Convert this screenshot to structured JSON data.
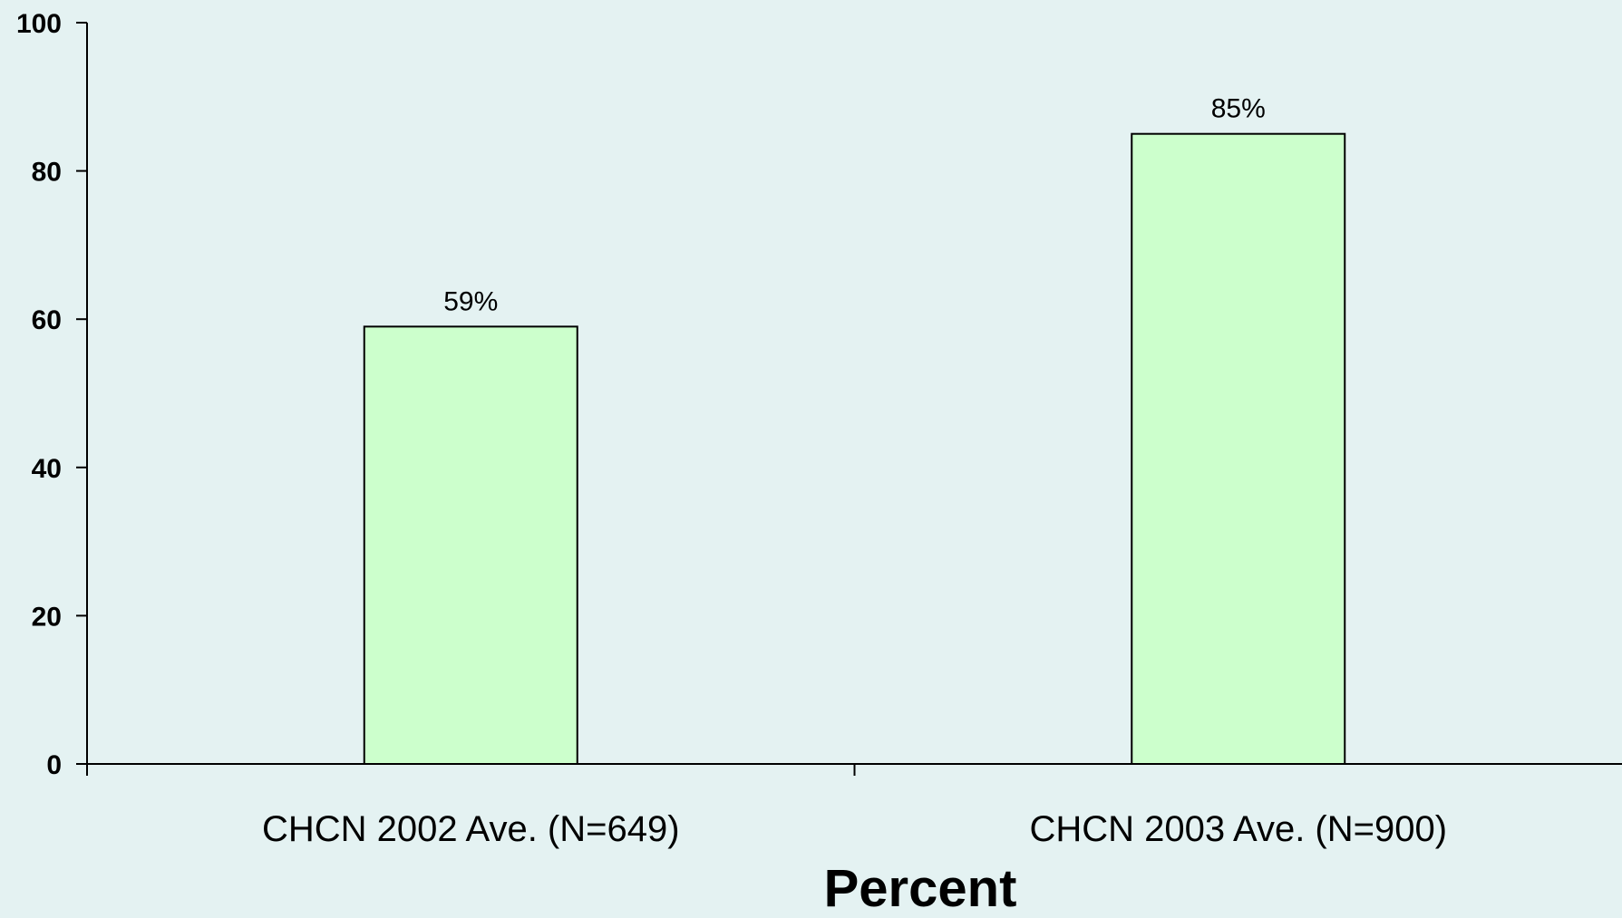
{
  "colors": {
    "background": "#e4f2f2",
    "bar_fill": "#ccffcc",
    "bar_stroke": "#000000",
    "axis": "#000000"
  },
  "chart_data": {
    "type": "bar",
    "categories": [
      "CHCN 2002 Ave. (N=649)",
      "CHCN 2003 Ave. (N=900)"
    ],
    "values": [
      59,
      85
    ],
    "data_labels": [
      "59%",
      "85%"
    ],
    "title": "",
    "xlabel": "Percent",
    "ylabel": "",
    "ylim": [
      0,
      100
    ],
    "yticks": [
      0,
      20,
      40,
      60,
      80,
      100
    ],
    "grid": false,
    "legend": "none"
  }
}
